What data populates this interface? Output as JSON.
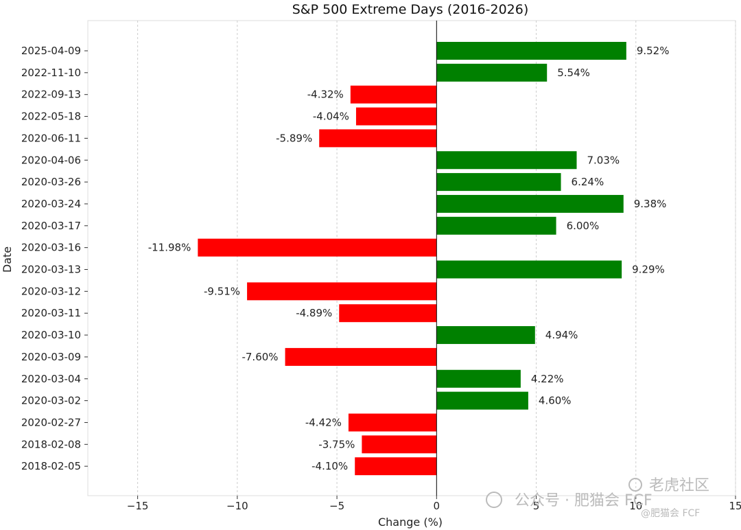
{
  "chart_data": {
    "type": "bar",
    "orientation": "horizontal",
    "title": "S&P 500 Extreme Days (2016-2026)",
    "xlabel": "Change (%)",
    "ylabel": "Date",
    "xlim": [
      -17.5,
      15
    ],
    "xticks": [
      -15,
      -10,
      -5,
      0,
      5,
      10,
      15
    ],
    "xtick_labels": [
      "−15",
      "−10",
      "−5",
      "0",
      "5",
      "10",
      "15"
    ],
    "grid": "x, dashed",
    "positive_color": "#008000",
    "negative_color": "#ff0000",
    "categories": [
      "2025-04-09",
      "2022-11-10",
      "2022-09-13",
      "2022-05-18",
      "2020-06-11",
      "2020-04-06",
      "2020-03-26",
      "2020-03-24",
      "2020-03-17",
      "2020-03-16",
      "2020-03-13",
      "2020-03-12",
      "2020-03-11",
      "2020-03-10",
      "2020-03-09",
      "2020-03-04",
      "2020-03-02",
      "2020-02-27",
      "2018-02-08",
      "2018-02-05"
    ],
    "values": [
      9.52,
      5.54,
      -4.32,
      -4.04,
      -5.89,
      7.03,
      6.24,
      9.38,
      6.0,
      -11.98,
      9.29,
      -9.51,
      -4.89,
      4.94,
      -7.6,
      4.22,
      4.6,
      -4.42,
      -3.75,
      -4.1
    ],
    "value_labels": [
      "9.52%",
      "5.54%",
      "-4.32%",
      "-4.04%",
      "-5.89%",
      "7.03%",
      "6.24%",
      "9.38%",
      "6.00%",
      "-11.98%",
      "9.29%",
      "-9.51%",
      "-4.89%",
      "4.94%",
      "-7.60%",
      "4.22%",
      "4.60%",
      "-4.42%",
      "-3.75%",
      "-4.10%"
    ]
  },
  "watermark": {
    "text": "公众号 · 肥猫会 FCF",
    "brand": "老虎社区",
    "handle": "@肥猫会 FCF"
  }
}
